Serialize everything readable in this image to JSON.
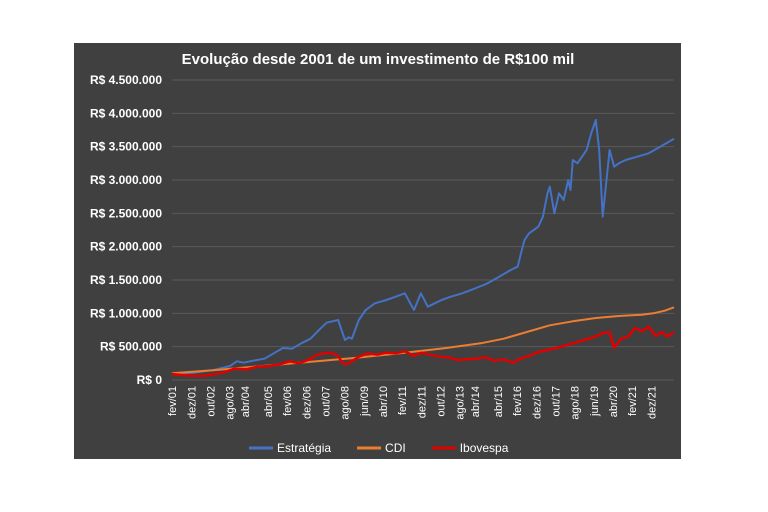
{
  "chart_data": {
    "type": "line",
    "title": "Evolução desde 2001 de um investimento de R$100 mil",
    "ylim": [
      0,
      4500000
    ],
    "yticks": [
      0,
      500000,
      1000000,
      1500000,
      2000000,
      2500000,
      3000000,
      3500000,
      4000000,
      4500000
    ],
    "ytick_labels": [
      "R$ 0",
      "R$ 500.000",
      "R$ 1.000.000",
      "R$ 1.500.000",
      "R$ 2.000.000",
      "R$ 2.500.000",
      "R$ 3.000.000",
      "R$ 3.500.000",
      "R$ 4.000.000",
      "R$ 4.500.000"
    ],
    "xlim": [
      2001.08,
      2022.9
    ],
    "xticks": [
      2001.08,
      2001.92,
      2002.75,
      2003.58,
      2004.25,
      2005.25,
      2006.08,
      2006.92,
      2007.75,
      2008.58,
      2009.42,
      2010.25,
      2011.08,
      2011.92,
      2012.75,
      2013.58,
      2014.25,
      2015.25,
      2016.08,
      2016.92,
      2017.75,
      2018.58,
      2019.42,
      2020.25,
      2021.08,
      2021.92
    ],
    "xtick_labels": [
      "fev/01",
      "dez/01",
      "out/02",
      "ago/03",
      "abr/04",
      "abr/05",
      "fev/06",
      "dez/06",
      "out/07",
      "ago/08",
      "jun/09",
      "abr/10",
      "fev/11",
      "dez/11",
      "out/12",
      "ago/13",
      "abr/14",
      "abr/15",
      "fev/16",
      "dez/16",
      "out/17",
      "ago/18",
      "jun/19",
      "abr/20",
      "fev/21",
      "dez/21"
    ],
    "legend_position": "bottom",
    "series": [
      {
        "name": "Estratégia",
        "color": "#4472C4",
        "x": [
          2001.08,
          2002.0,
          2002.9,
          2003.6,
          2003.9,
          2004.2,
          2004.6,
          2005.1,
          2005.5,
          2005.9,
          2006.3,
          2006.7,
          2007.1,
          2007.5,
          2007.8,
          2008.3,
          2008.6,
          2008.75,
          2008.9,
          2009.2,
          2009.5,
          2009.9,
          2010.4,
          2010.8,
          2011.2,
          2011.6,
          2011.9,
          2012.2,
          2012.5,
          2012.8,
          2013.2,
          2013.7,
          2014.3,
          2014.8,
          2015.3,
          2015.8,
          2016.1,
          2016.25,
          2016.4,
          2016.6,
          2016.8,
          2017.0,
          2017.2,
          2017.4,
          2017.5,
          2017.7,
          2017.9,
          2018.1,
          2018.3,
          2018.4,
          2018.5,
          2018.7,
          2018.9,
          2019.1,
          2019.3,
          2019.5,
          2019.65,
          2019.8,
          2020.1,
          2020.3,
          2020.5,
          2020.8,
          2021.3,
          2021.8,
          2022.3,
          2022.9
        ],
        "values": [
          90000,
          110000,
          150000,
          210000,
          280000,
          260000,
          290000,
          320000,
          400000,
          480000,
          470000,
          550000,
          620000,
          760000,
          860000,
          900000,
          600000,
          640000,
          620000,
          900000,
          1050000,
          1150000,
          1200000,
          1250000,
          1300000,
          1050000,
          1300000,
          1100000,
          1150000,
          1200000,
          1250000,
          1300000,
          1380000,
          1450000,
          1550000,
          1650000,
          1700000,
          1900000,
          2100000,
          2200000,
          2250000,
          2300000,
          2450000,
          2800000,
          2900000,
          2500000,
          2800000,
          2700000,
          3000000,
          2850000,
          3300000,
          3250000,
          3350000,
          3450000,
          3700000,
          3900000,
          3450000,
          2450000,
          3450000,
          3200000,
          3250000,
          3300000,
          3350000,
          3400000,
          3500000,
          3620000
        ]
      },
      {
        "name": "CDI",
        "color": "#ED7D31",
        "x": [
          2001.08,
          2003.0,
          2005.0,
          2007.0,
          2009.0,
          2011.0,
          2013.0,
          2014.5,
          2015.5,
          2016.5,
          2017.5,
          2018.5,
          2019.5,
          2020.5,
          2021.5,
          2022.0,
          2022.5,
          2022.9
        ],
        "values": [
          100000,
          150000,
          210000,
          270000,
          330000,
          400000,
          480000,
          550000,
          620000,
          720000,
          820000,
          880000,
          930000,
          960000,
          980000,
          1000000,
          1040000,
          1090000
        ]
      },
      {
        "name": "Ibovespa",
        "color": "#E00000",
        "x": [
          2001.08,
          2001.6,
          2002.3,
          2002.8,
          2003.3,
          2003.8,
          2004.3,
          2004.8,
          2005.3,
          2005.8,
          2006.2,
          2006.6,
          2007.0,
          2007.4,
          2007.7,
          2008.0,
          2008.3,
          2008.5,
          2008.7,
          2008.9,
          2009.2,
          2009.6,
          2010.0,
          2010.4,
          2010.8,
          2011.2,
          2011.6,
          2011.9,
          2012.3,
          2012.7,
          2013.1,
          2013.5,
          2013.9,
          2014.3,
          2014.7,
          2015.1,
          2015.5,
          2015.9,
          2016.2,
          2016.6,
          2017.0,
          2017.4,
          2017.8,
          2018.2,
          2018.6,
          2019.0,
          2019.4,
          2019.8,
          2020.1,
          2020.3,
          2020.6,
          2020.9,
          2021.2,
          2021.5,
          2021.8,
          2022.1,
          2022.4,
          2022.6,
          2022.9
        ],
        "values": [
          90000,
          70000,
          60000,
          80000,
          110000,
          170000,
          160000,
          200000,
          210000,
          240000,
          280000,
          250000,
          300000,
          380000,
          400000,
          410000,
          360000,
          250000,
          240000,
          280000,
          350000,
          400000,
          380000,
          410000,
          400000,
          430000,
          360000,
          410000,
          380000,
          350000,
          340000,
          300000,
          310000,
          320000,
          340000,
          290000,
          310000,
          260000,
          320000,
          360000,
          420000,
          450000,
          480000,
          520000,
          560000,
          600000,
          640000,
          700000,
          720000,
          480000,
          620000,
          650000,
          780000,
          730000,
          800000,
          660000,
          720000,
          650000,
          720000
        ]
      }
    ]
  }
}
